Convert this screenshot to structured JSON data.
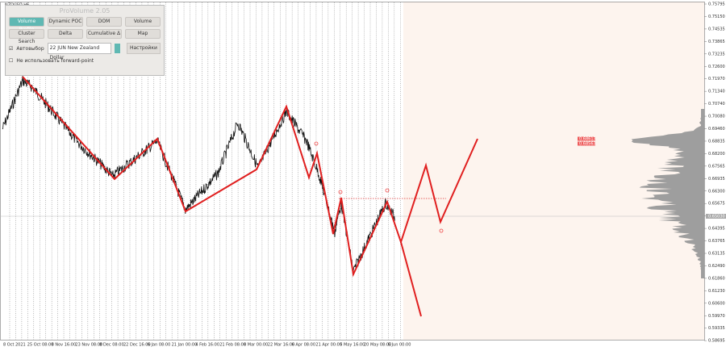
{
  "window": {
    "symbol": "NZDUSD,H6"
  },
  "panel": {
    "title": "ProVolume 2.05",
    "buttons": [
      "Volume Profile",
      "Dynamic POC",
      "DOM",
      "Volume",
      "Cluster Search",
      "Delta",
      "Cumulative Δ",
      "Map"
    ],
    "auto_label": "Автовыбор",
    "instrument": "22 JUN New Zealand Dollar",
    "settings": "Настройки",
    "forward_label": "Не использовать forward-point"
  },
  "price_axis": [
    "0.75795",
    "0.75150",
    "0.74535",
    "0.73865",
    "0.73235",
    "0.72600",
    "0.71970",
    "0.71340",
    "0.70740",
    "0.70080",
    "0.69460",
    "0.68835",
    "0.68200",
    "0.67565",
    "0.66935",
    "0.66300",
    "0.65675",
    "0.65030",
    "0.64395",
    "0.63765",
    "0.63135",
    "0.62490",
    "0.61860",
    "0.61230",
    "0.60600",
    "0.59970",
    "0.59335",
    "0.58695"
  ],
  "current_price": "0.65030",
  "level_labels": [
    "0.68613",
    "0.68563"
  ],
  "time_axis": [
    "8 Oct 2021",
    "25 Oct 08:00",
    "8 Nov 16:00",
    "23 Nov 08:00",
    "8 Dec 08:00",
    "22 Dec 16:00",
    "6 Jan 08:00",
    "21 Jan 00:00",
    "4 Feb 16:00",
    "21 Feb 08:00",
    "8 Mar 00:00",
    "22 Mar 16:00",
    "6 Apr 08:00",
    "21 Apr 00:00",
    "5 May 16:00",
    "20 May 08:00",
    "6 Jun 00:00"
  ]
}
